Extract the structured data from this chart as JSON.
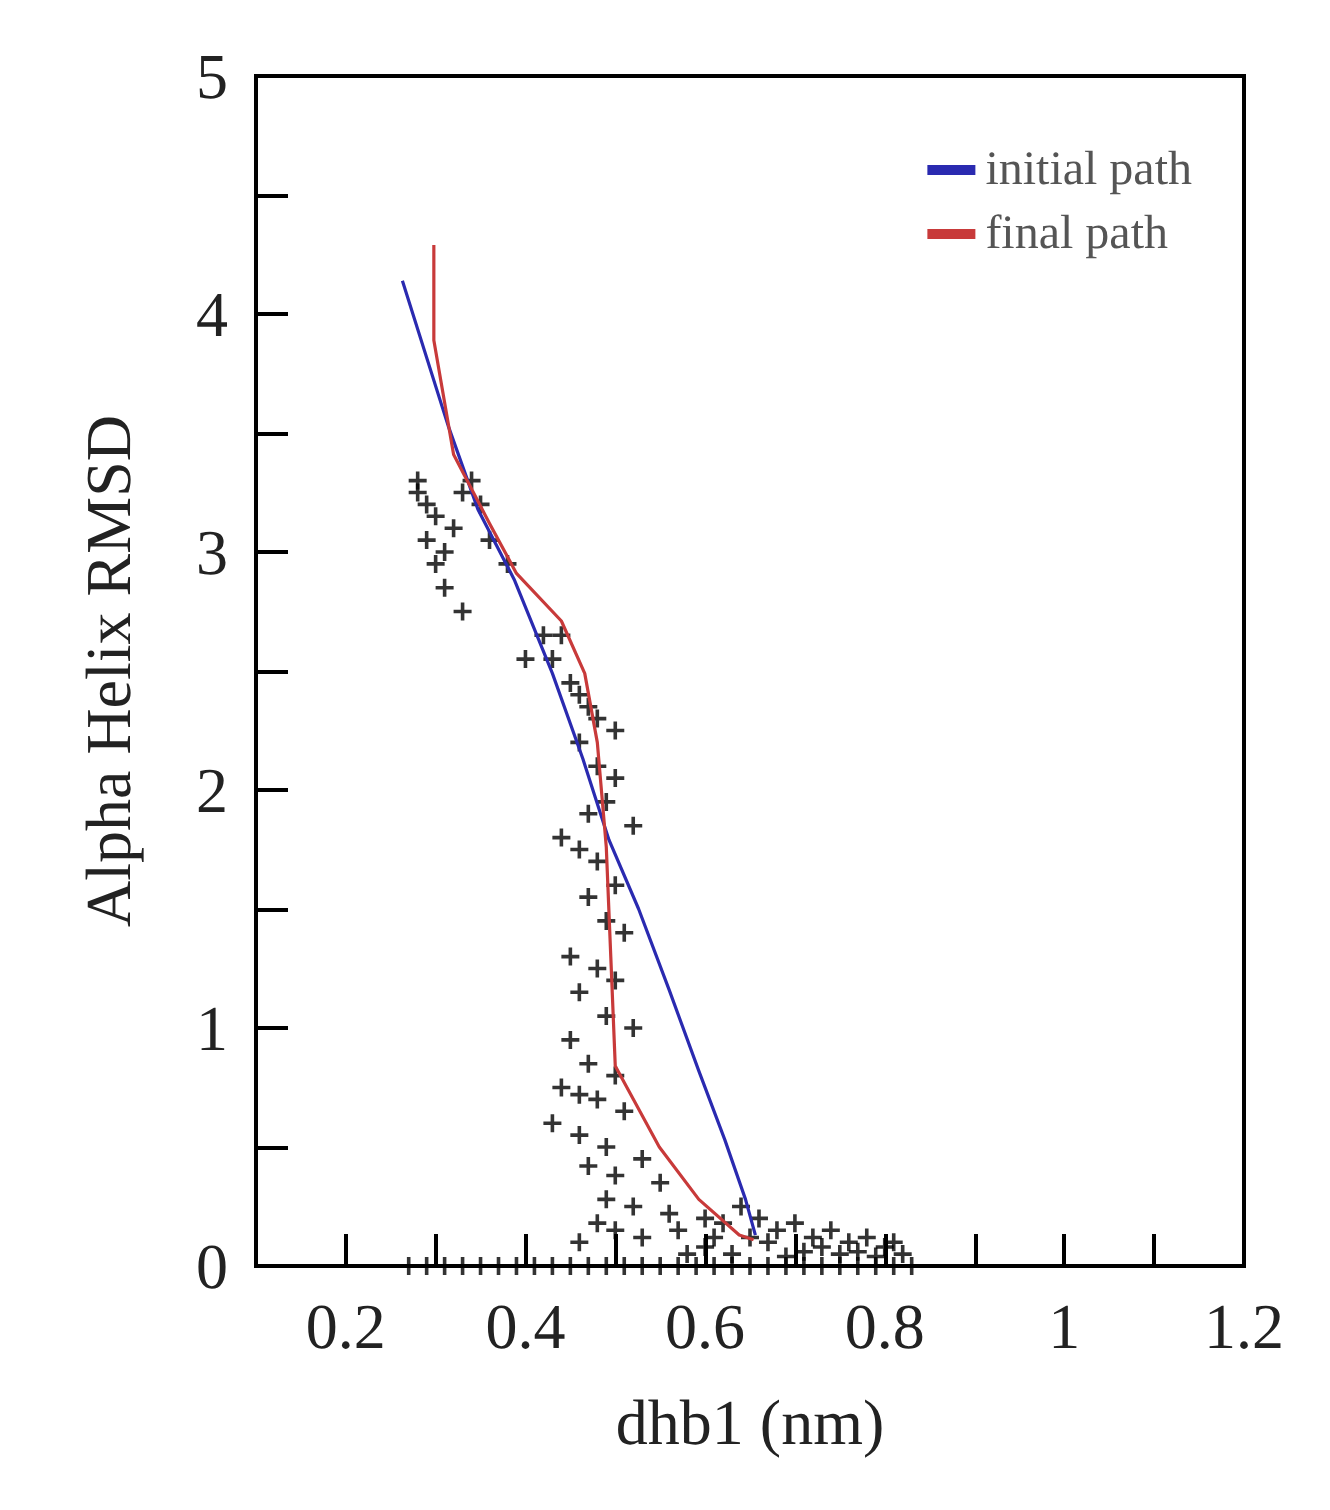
{
  "chart_data": {
    "type": "scatter",
    "xlabel": "dhb1 (nm)",
    "ylabel": "Alpha Helix RMSD",
    "xlim": [
      0.1,
      1.2
    ],
    "ylim": [
      0,
      5
    ],
    "xticks": [
      0.2,
      {
        "value": 0.3,
        "label": null
      },
      0.4,
      {
        "value": 0.5,
        "label": null
      },
      0.6,
      {
        "value": 0.7,
        "label": null
      },
      0.8,
      {
        "value": 0.9,
        "label": null
      },
      1,
      {
        "value": 1.1,
        "label": null
      },
      1.2
    ],
    "yticks": [
      0,
      {
        "value": 0.5,
        "label": null
      },
      1,
      {
        "value": 1.5,
        "label": null
      },
      2,
      {
        "value": 2.5,
        "label": null
      },
      3,
      {
        "value": 3.5,
        "label": null
      },
      4,
      {
        "value": 4.5,
        "label": null
      },
      5
    ],
    "grid": false,
    "legend": "top right",
    "series": [
      {
        "marker": "cross",
        "color": "#000000",
        "x": [
          0.28,
          0.29,
          0.3,
          0.29,
          0.31,
          0.3,
          0.32,
          0.33,
          0.35,
          0.36,
          0.38,
          0.31,
          0.33,
          0.28,
          0.34,
          0.42,
          0.44,
          0.43,
          0.4,
          0.45,
          0.46,
          0.47,
          0.48,
          0.5,
          0.46,
          0.48,
          0.5,
          0.49,
          0.47,
          0.52,
          0.44,
          0.46,
          0.48,
          0.5,
          0.47,
          0.49,
          0.51,
          0.45,
          0.48,
          0.5,
          0.46,
          0.49,
          0.52,
          0.45,
          0.47,
          0.5,
          0.44,
          0.46,
          0.48,
          0.51,
          0.43,
          0.46,
          0.49,
          0.53,
          0.47,
          0.5,
          0.55,
          0.49,
          0.52,
          0.56,
          0.48,
          0.5,
          0.53,
          0.46,
          0.57,
          0.6,
          0.62,
          0.64,
          0.66,
          0.68,
          0.7,
          0.72,
          0.74,
          0.76,
          0.78,
          0.8,
          0.82,
          0.6,
          0.63,
          0.67,
          0.71,
          0.75,
          0.79,
          0.81,
          0.58,
          0.65,
          0.69,
          0.73,
          0.77,
          0.61,
          0.27,
          0.29,
          0.31,
          0.33,
          0.35,
          0.37,
          0.39,
          0.41,
          0.43,
          0.45,
          0.47,
          0.49,
          0.51,
          0.53,
          0.55,
          0.57,
          0.59,
          0.61,
          0.63,
          0.65,
          0.67,
          0.69,
          0.71,
          0.73,
          0.75,
          0.77,
          0.79,
          0.81,
          0.83
        ],
        "values": [
          3.25,
          3.2,
          3.15,
          3.05,
          3.0,
          2.95,
          3.1,
          3.25,
          3.2,
          3.05,
          2.95,
          2.85,
          2.75,
          3.3,
          3.3,
          2.65,
          2.65,
          2.55,
          2.55,
          2.45,
          2.4,
          2.35,
          2.3,
          2.25,
          2.2,
          2.1,
          2.05,
          1.95,
          1.9,
          1.85,
          1.8,
          1.75,
          1.7,
          1.6,
          1.55,
          1.45,
          1.4,
          1.3,
          1.25,
          1.2,
          1.15,
          1.05,
          1.0,
          0.95,
          0.85,
          0.8,
          0.75,
          0.72,
          0.7,
          0.65,
          0.6,
          0.55,
          0.5,
          0.45,
          0.42,
          0.38,
          0.35,
          0.28,
          0.25,
          0.22,
          0.18,
          0.15,
          0.12,
          0.1,
          0.15,
          0.2,
          0.18,
          0.25,
          0.2,
          0.15,
          0.18,
          0.12,
          0.15,
          0.1,
          0.12,
          0.08,
          0.05,
          0.08,
          0.05,
          0.1,
          0.06,
          0.05,
          0.04,
          0.1,
          0.05,
          0.12,
          0.04,
          0.08,
          0.06,
          0.12,
          0,
          0,
          0,
          0,
          0,
          0,
          0,
          0,
          0,
          0,
          0,
          0,
          0,
          0,
          0,
          0,
          0,
          0,
          0,
          0,
          0,
          0,
          0,
          0,
          0,
          0,
          0,
          0,
          0
        ]
      },
      {
        "type": "line",
        "marker": "none",
        "name": "initial path",
        "color": "#2a2ab0",
        "x": [
          0.263,
          0.314,
          0.347,
          0.388,
          0.43,
          0.464,
          0.493,
          0.526,
          0.56,
          0.593,
          0.622,
          0.645,
          0.656
        ],
        "values": [
          4.14,
          3.53,
          3.18,
          2.88,
          2.49,
          2.13,
          1.79,
          1.5,
          1.16,
          0.82,
          0.53,
          0.28,
          0.13
        ]
      },
      {
        "type": "line",
        "marker": "none",
        "name": "final path",
        "color": "#c83a3a",
        "x": [
          0.298,
          0.298,
          0.32,
          0.36,
          0.39,
          0.44,
          0.466,
          0.48,
          0.49,
          0.495,
          0.5,
          0.549,
          0.593,
          0.638,
          0.654
        ],
        "values": [
          4.29,
          3.89,
          3.41,
          3.12,
          2.91,
          2.71,
          2.49,
          2.2,
          1.76,
          1.3,
          0.84,
          0.5,
          0.28,
          0.13,
          0.11
        ]
      }
    ]
  }
}
